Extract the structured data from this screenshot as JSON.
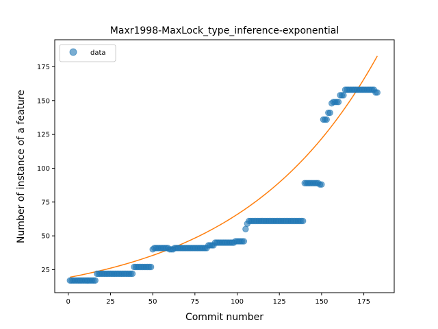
{
  "chart_data": {
    "type": "scatter",
    "title": "Maxr1998-MaxLock_type_inference-exponential",
    "xlabel": "Commit number",
    "ylabel": "Number of instance of a feature",
    "xlim": [
      -8,
      193
    ],
    "ylim": [
      8,
      195
    ],
    "xticks": [
      0,
      25,
      50,
      75,
      100,
      125,
      150,
      175
    ],
    "yticks": [
      25,
      50,
      75,
      100,
      125,
      150,
      175
    ],
    "legend": {
      "position": "top-left",
      "entries": [
        "data"
      ]
    },
    "grid": false,
    "colors": {
      "data": "#1f77b4",
      "fit": "#ff7f0e"
    },
    "series": [
      {
        "name": "data",
        "kind": "scatter",
        "segments": [
          {
            "x_from": 1,
            "x_to": 16,
            "y": 17
          },
          {
            "x_from": 17,
            "x_to": 38,
            "y": 22
          },
          {
            "x_from": 39,
            "x_to": 49,
            "y": 27
          },
          {
            "x_from": 50,
            "x_to": 50,
            "y": 40
          },
          {
            "x_from": 51,
            "x_to": 59,
            "y": 41
          },
          {
            "x_from": 60,
            "x_to": 62,
            "y": 40
          },
          {
            "x_from": 63,
            "x_to": 82,
            "y": 41
          },
          {
            "x_from": 83,
            "x_to": 86,
            "y": 43
          },
          {
            "x_from": 87,
            "x_to": 98,
            "y": 45
          },
          {
            "x_from": 99,
            "x_to": 104,
            "y": 46
          },
          {
            "x_from": 105,
            "x_to": 105,
            "y": 55
          },
          {
            "x_from": 106,
            "x_to": 106,
            "y": 59
          },
          {
            "x_from": 107,
            "x_to": 139,
            "y": 61
          },
          {
            "x_from": 140,
            "x_to": 148,
            "y": 89
          },
          {
            "x_from": 149,
            "x_to": 150,
            "y": 88
          },
          {
            "x_from": 151,
            "x_to": 153,
            "y": 136
          },
          {
            "x_from": 154,
            "x_to": 155,
            "y": 141
          },
          {
            "x_from": 156,
            "x_to": 156,
            "y": 148
          },
          {
            "x_from": 157,
            "x_to": 160,
            "y": 149
          },
          {
            "x_from": 161,
            "x_to": 163,
            "y": 154
          },
          {
            "x_from": 164,
            "x_to": 181,
            "y": 158
          },
          {
            "x_from": 182,
            "x_to": 183,
            "y": 156
          }
        ]
      },
      {
        "kind": "line",
        "function": "exponential",
        "a": 19.2,
        "b": 0.01232,
        "x_range": [
          1,
          183
        ]
      }
    ]
  }
}
